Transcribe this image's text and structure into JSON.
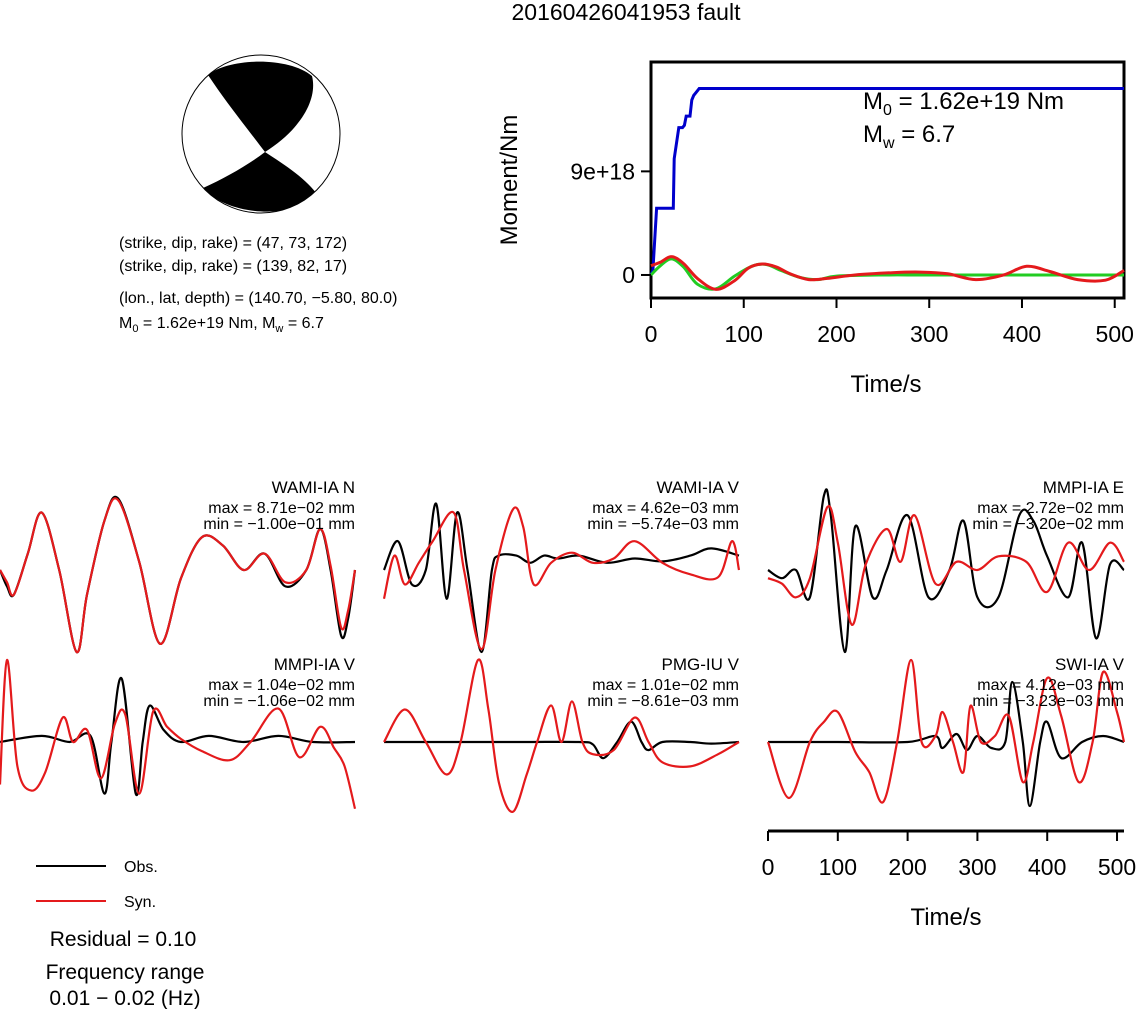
{
  "title": "20160426041953 fault",
  "focal_mechanism": {
    "plane1": "(strike, dip, rake) = (47, 73, 172)",
    "plane2": "(strike, dip, rake) = (139, 82, 17)",
    "location": "(lon., lat, depth) = (140.70, −5.80, 80.0)",
    "moment_prefix": "M",
    "moment_sub": "0",
    "moment_value": " = 1.62e+19 Nm, M",
    "mw_sub": "w",
    "mw_value": " = 6.7"
  },
  "colors": {
    "obs": "#000000",
    "syn": "#e41a1c",
    "moment": "#0000cc",
    "stf_green": "#22cc22"
  },
  "moment_plot": {
    "ylabel": "Moment/Nm",
    "xlabel": "Time/s",
    "yticks": [
      "0",
      "9e+18"
    ],
    "xticks": [
      "0",
      "100",
      "200",
      "300",
      "400",
      "500"
    ],
    "annot_m0_main": "M",
    "annot_m0_sub": "0",
    "annot_m0_val": " = 1.62e+19 Nm",
    "annot_mw_main": "M",
    "annot_mw_sub": "w",
    "annot_mw_val": " = 6.7"
  },
  "waveform_axis": {
    "xlabel": "Time/s",
    "xticks": [
      "0",
      "100",
      "200",
      "300",
      "400",
      "500"
    ]
  },
  "legend": {
    "obs": "Obs.",
    "syn": "Syn."
  },
  "residual": "Residual = 0.10",
  "freq_label": "Frequency range",
  "freq_value": "0.01 − 0.02 (Hz)",
  "chart_data": [
    {
      "type": "line",
      "title": "",
      "xlabel": "Time/s",
      "ylabel": "Moment/Nm",
      "xlim": [
        0,
        510
      ],
      "ylim": [
        -2e+18,
        1.85e+19
      ],
      "series": [
        {
          "name": "",
          "color": "#0000cc",
          "x": [
            0,
            2,
            6,
            12,
            20,
            24,
            25,
            30,
            34,
            36,
            38,
            42,
            44,
            46,
            50,
            52,
            54,
            60,
            80,
            150,
            250,
            350,
            450,
            510
          ],
          "y": [
            0,
            4e+17,
            5.8e+18,
            5.8e+18,
            5.8e+18,
            5.8e+18,
            1.01e+19,
            1.28e+19,
            1.28e+19,
            1.3e+19,
            1.38e+19,
            1.38e+19,
            1.52e+19,
            1.56e+19,
            1.6e+19,
            1.62e+19,
            1.62e+19,
            1.62e+19,
            1.62e+19,
            1.62e+19,
            1.62e+19,
            1.62e+19,
            1.62e+19,
            1.62e+19
          ]
        },
        {
          "name": "",
          "color": "#22cc22",
          "x": [
            0,
            10,
            22,
            35,
            50,
            70,
            90,
            110,
            125,
            140,
            160,
            180,
            200,
            250,
            300,
            400,
            510
          ],
          "y": [
            0,
            8e+17,
            1.4e+18,
            7e+17,
            -8e+17,
            -1.2e+18,
            -1e+17,
            8e+17,
            9e+17,
            4e+17,
            -2e+17,
            -4e+17,
            -1e+17,
            0,
            0,
            0,
            0
          ]
        },
        {
          "name": "",
          "color": "#e41a1c",
          "x": [
            0,
            10,
            22,
            35,
            50,
            70,
            90,
            105,
            120,
            135,
            150,
            170,
            190,
            220,
            260,
            290,
            320,
            350,
            380,
            405,
            430,
            460,
            490,
            510
          ],
          "y": [
            8e+17,
            1.1e+18,
            1.6e+18,
            1e+18,
            -3e+17,
            -1.25e+18,
            -5e+17,
            6e+17,
            9.5e+17,
            7e+17,
            1e+17,
            -4e+17,
            -3e+17,
            0,
            2e+17,
            2.5e+17,
            1e+17,
            -4e+17,
            0,
            7.5e+17,
            3e+17,
            -4e+17,
            -4.5e+17,
            4e+17
          ]
        }
      ]
    },
    {
      "type": "line",
      "title": "WAMI-IA N",
      "xlim": [
        0,
        510
      ],
      "annotations": [
        "max = 8.71e−02 mm",
        "min = −1.00e−01 mm"
      ],
      "series": [
        {
          "name": "Obs.",
          "x": [
            0,
            10,
            20,
            40,
            60,
            85,
            110,
            125,
            150,
            170,
            200,
            230,
            260,
            290,
            320,
            350,
            380,
            410,
            440,
            460,
            475,
            490,
            500,
            510
          ],
          "y": [
            0.0,
            -0.02,
            -0.03,
            0.02,
            0.07,
            0.0,
            -0.1,
            -0.03,
            0.06,
            0.087,
            0.01,
            -0.09,
            -0.01,
            0.04,
            0.03,
            0.0,
            0.02,
            -0.02,
            0.0,
            0.05,
            0.0,
            -0.08,
            -0.06,
            0.0
          ]
        },
        {
          "name": "Syn.",
          "x": [
            0,
            10,
            20,
            40,
            60,
            85,
            110,
            125,
            150,
            170,
            200,
            230,
            260,
            290,
            320,
            350,
            380,
            410,
            440,
            460,
            475,
            490,
            500,
            510
          ],
          "y": [
            0.0,
            -0.015,
            -0.03,
            0.02,
            0.07,
            0.0,
            -0.1,
            -0.03,
            0.06,
            0.085,
            0.01,
            -0.09,
            -0.01,
            0.04,
            0.03,
            0.0,
            0.02,
            -0.015,
            0.0,
            0.05,
            0.005,
            -0.07,
            -0.05,
            0.0
          ]
        }
      ]
    },
    {
      "type": "line",
      "title": "WAMI-IA V",
      "xlim": [
        0,
        510
      ],
      "annotations": [
        "max = 4.62e−03 mm",
        "min = −5.74e−03 mm"
      ],
      "series": [
        {
          "name": "Obs.",
          "x": [
            0,
            20,
            40,
            60,
            75,
            90,
            105,
            120,
            140,
            155,
            165,
            190,
            210,
            230,
            250,
            280,
            320,
            360,
            400,
            440,
            470,
            510
          ],
          "y": [
            0.0,
            0.002,
            -0.001,
            0.0,
            0.0046,
            -0.002,
            0.004,
            0.0,
            -0.0057,
            0.0,
            0.001,
            0.001,
            0.0005,
            0.001,
            0.0008,
            0.001,
            0.0005,
            0.0008,
            0.0006,
            0.001,
            0.0015,
            0.001
          ]
        },
        {
          "name": "Syn.",
          "x": [
            0,
            15,
            30,
            50,
            70,
            100,
            115,
            140,
            160,
            185,
            200,
            215,
            240,
            270,
            300,
            330,
            360,
            400,
            440,
            480,
            500,
            510
          ],
          "y": [
            -0.002,
            0.001,
            -0.001,
            0.0005,
            0.002,
            0.004,
            0.0,
            -0.0055,
            0.0,
            0.0042,
            0.003,
            -0.001,
            0.0005,
            0.0012,
            0.0005,
            0.0008,
            0.002,
            0.0005,
            -0.0003,
            -0.0005,
            0.002,
            0.0
          ]
        }
      ]
    },
    {
      "type": "line",
      "title": "MMPI-IA E",
      "xlim": [
        0,
        510
      ],
      "annotations": [
        "max = 2.72e−02 mm",
        "min = −3.20e−02 mm"
      ],
      "series": [
        {
          "name": "Obs.",
          "x": [
            0,
            20,
            40,
            60,
            80,
            90,
            110,
            125,
            150,
            170,
            200,
            230,
            260,
            280,
            300,
            330,
            360,
            380,
            400,
            430,
            450,
            470,
            490,
            510
          ],
          "y": [
            0.0,
            -0.003,
            0.0,
            -0.01,
            0.027,
            0.02,
            -0.03,
            0.016,
            -0.01,
            0.0,
            0.02,
            -0.01,
            0.0,
            0.018,
            -0.01,
            -0.01,
            0.02,
            0.018,
            0.005,
            -0.01,
            0.01,
            -0.025,
            0.002,
            0.0
          ]
        },
        {
          "name": "Syn.",
          "x": [
            0,
            20,
            40,
            60,
            85,
            100,
            120,
            140,
            170,
            190,
            210,
            240,
            270,
            300,
            330,
            370,
            400,
            430,
            460,
            490,
            510
          ],
          "y": [
            -0.003,
            -0.005,
            -0.01,
            -0.003,
            0.023,
            0.01,
            -0.02,
            0.002,
            0.015,
            0.003,
            0.02,
            -0.005,
            0.003,
            0.0,
            0.005,
            0.003,
            -0.008,
            0.01,
            0.0,
            0.01,
            0.003
          ]
        }
      ]
    },
    {
      "type": "line",
      "title": "MMPI-IA V",
      "xlim": [
        0,
        510
      ],
      "annotations": [
        "max = 1.04e−02 mm",
        "min = −1.06e−02 mm"
      ],
      "series": [
        {
          "name": "Obs.",
          "x": [
            0,
            60,
            100,
            130,
            150,
            160,
            175,
            195,
            205,
            215,
            235,
            260,
            300,
            350,
            400,
            450,
            510
          ],
          "y": [
            0.0,
            0.001,
            0.0,
            0.001,
            -0.0085,
            0.0,
            0.0104,
            -0.0085,
            0.0,
            0.006,
            0.002,
            0.0,
            0.001,
            0.0,
            0.001,
            0.0,
            0.0
          ]
        },
        {
          "name": "Syn.",
          "x": [
            0,
            10,
            25,
            45,
            65,
            90,
            105,
            125,
            145,
            165,
            180,
            200,
            220,
            240,
            260,
            290,
            330,
            360,
            400,
            430,
            460,
            480,
            495,
            510
          ],
          "y": [
            -0.007,
            0.0135,
            -0.004,
            -0.008,
            -0.005,
            0.004,
            0.0,
            0.002,
            -0.006,
            0.003,
            0.0045,
            -0.0085,
            0.005,
            0.0025,
            0.0005,
            -0.0015,
            -0.003,
            0.0,
            0.0055,
            -0.0025,
            0.0025,
            -0.001,
            -0.004,
            -0.011
          ]
        }
      ]
    },
    {
      "type": "line",
      "title": "PMG-IU V",
      "xlim": [
        0,
        510
      ],
      "annotations": [
        "max = 1.01e−02 mm",
        "min = −8.61e−03 mm"
      ],
      "series": [
        {
          "name": "Obs.",
          "x": [
            0,
            100,
            200,
            280,
            300,
            315,
            335,
            355,
            370,
            380,
            400,
            440,
            470,
            510
          ],
          "y": [
            0.0,
            0.0,
            0.0,
            0.0,
            -0.0003,
            -0.002,
            0.0,
            0.0025,
            0.0,
            -0.001,
            0.0,
            0.0,
            -0.0002,
            0.0
          ]
        },
        {
          "name": "Syn.",
          "x": [
            0,
            30,
            60,
            90,
            110,
            135,
            150,
            165,
            185,
            205,
            220,
            240,
            255,
            270,
            285,
            300,
            330,
            360,
            380,
            400,
            440,
            480,
            510
          ],
          "y": [
            0.0,
            0.004,
            0.0,
            -0.004,
            0.0,
            0.0101,
            0.004,
            -0.005,
            -0.0086,
            -0.004,
            0.0,
            0.0045,
            0.0,
            0.005,
            0.0,
            -0.0015,
            -0.001,
            0.003,
            0.0,
            -0.0025,
            -0.003,
            -0.0015,
            0.0
          ]
        }
      ]
    },
    {
      "type": "line",
      "title": "SWI-IA V",
      "xlabel": "Time/s",
      "xlim": [
        0,
        510
      ],
      "annotations": [
        "max = 4.12e−03 mm",
        "min = −3.23e−03 mm"
      ],
      "series": [
        {
          "name": "Obs.",
          "x": [
            0,
            100,
            200,
            240,
            250,
            270,
            285,
            300,
            320,
            340,
            350,
            365,
            375,
            390,
            400,
            420,
            450,
            480,
            510
          ],
          "y": [
            0.0,
            0.0,
            0.0,
            0.0003,
            -0.0003,
            0.0004,
            -0.0004,
            0.0003,
            -0.0003,
            0.0,
            0.003,
            0.0,
            -0.0032,
            0.0,
            0.001,
            -0.0008,
            0.0,
            0.0003,
            0.0
          ]
        },
        {
          "name": "Syn.",
          "x": [
            0,
            30,
            60,
            80,
            100,
            125,
            145,
            165,
            185,
            205,
            220,
            240,
            250,
            265,
            280,
            290,
            305,
            325,
            345,
            365,
            380,
            400,
            420,
            445,
            465,
            480,
            500,
            510
          ],
          "y": [
            0.0,
            -0.0028,
            0.0,
            0.001,
            0.0015,
            -0.0005,
            -0.0015,
            -0.003,
            0.0,
            0.0041,
            0.0,
            0.0003,
            0.0015,
            0.0,
            -0.0015,
            0.0018,
            0.0,
            0.0003,
            0.0013,
            -0.002,
            0.0,
            0.0032,
            0.0013,
            -0.002,
            0.0,
            0.0035,
            0.0015,
            0.0
          ]
        }
      ]
    }
  ]
}
